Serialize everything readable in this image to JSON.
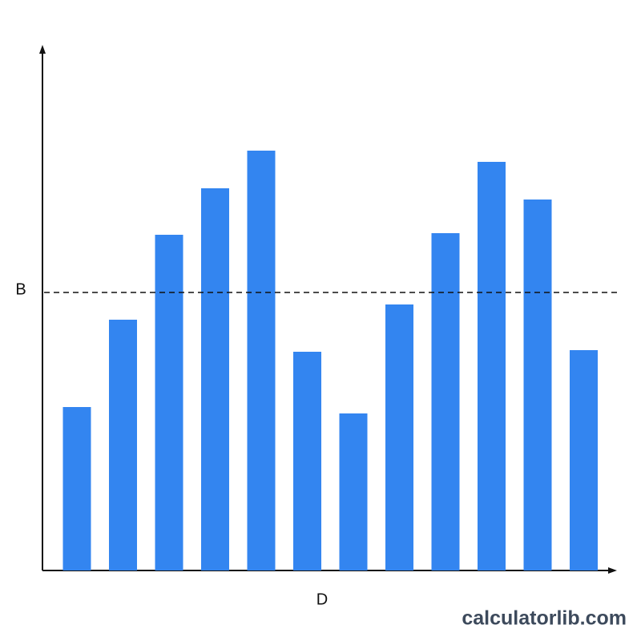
{
  "chart_data": {
    "type": "bar",
    "x_label": "D",
    "categories": [
      null,
      null,
      null,
      null,
      null,
      null,
      null,
      null,
      null,
      null,
      null,
      null
    ],
    "values": [
      204,
      313,
      419,
      477,
      524,
      273,
      196,
      332,
      421,
      510,
      463,
      275
    ],
    "color": "#3385f0",
    "ylim": [
      0,
      652
    ],
    "reference_line": {
      "label": "B",
      "value": 347
    },
    "watermark": "calculatorlib.com"
  }
}
